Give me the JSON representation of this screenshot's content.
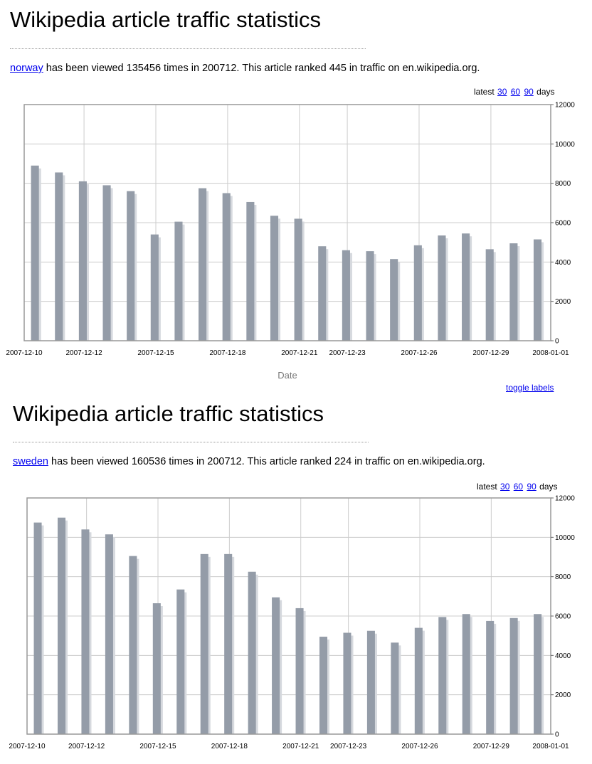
{
  "panels": [
    {
      "title": "Wikipedia article traffic statistics",
      "article": "norway",
      "summary_text": " has been viewed 135456 times in 200712. This article ranked 445 in traffic on en.wikipedia.org.",
      "latest": {
        "prefix": "latest",
        "links": [
          "30",
          "60",
          "90"
        ],
        "suffix": "days"
      },
      "toggle_label": "toggle labels",
      "chart_data": {
        "type": "bar",
        "x": [
          "2007-12-10",
          "2007-12-11",
          "2007-12-12",
          "2007-12-13",
          "2007-12-14",
          "2007-12-15",
          "2007-12-16",
          "2007-12-17",
          "2007-12-18",
          "2007-12-19",
          "2007-12-20",
          "2007-12-21",
          "2007-12-22",
          "2007-12-23",
          "2007-12-24",
          "2007-12-25",
          "2007-12-26",
          "2007-12-27",
          "2007-12-28",
          "2007-12-29",
          "2007-12-30",
          "2007-12-31"
        ],
        "values": [
          8900,
          8550,
          8100,
          7900,
          7600,
          5400,
          6050,
          7750,
          7500,
          7050,
          6350,
          6200,
          4800,
          4600,
          4550,
          4150,
          4850,
          5350,
          5450,
          4650,
          4950,
          5150
        ],
        "tick_labels": [
          "2007-12-10",
          "2007-12-12",
          "2007-12-15",
          "2007-12-18",
          "2007-12-21",
          "2007-12-23",
          "2007-12-26",
          "2007-12-29",
          "2008-01-01"
        ],
        "ylim": [
          0,
          12000
        ],
        "yticks": [
          0,
          2000,
          4000,
          6000,
          8000,
          10000,
          12000
        ],
        "xlabel": "Date",
        "ylabel": "",
        "grid": true,
        "bar_color": "#949ca8"
      }
    },
    {
      "title": "Wikipedia article traffic statistics",
      "article": "sweden",
      "summary_text": " has been viewed 160536 times in 200712. This article ranked 224 in traffic on en.wikipedia.org.",
      "latest": {
        "prefix": "latest",
        "links": [
          "30",
          "60",
          "90"
        ],
        "suffix": "days"
      },
      "chart_data": {
        "type": "bar",
        "x": [
          "2007-12-10",
          "2007-12-11",
          "2007-12-12",
          "2007-12-13",
          "2007-12-14",
          "2007-12-15",
          "2007-12-16",
          "2007-12-17",
          "2007-12-18",
          "2007-12-19",
          "2007-12-20",
          "2007-12-21",
          "2007-12-22",
          "2007-12-23",
          "2007-12-24",
          "2007-12-25",
          "2007-12-26",
          "2007-12-27",
          "2007-12-28",
          "2007-12-29",
          "2007-12-30",
          "2007-12-31"
        ],
        "values": [
          10750,
          11000,
          10400,
          10150,
          9050,
          6650,
          7350,
          9150,
          9150,
          8250,
          6950,
          6400,
          4950,
          5150,
          5250,
          4650,
          5400,
          5950,
          6100,
          5750,
          5900,
          6100
        ],
        "tick_labels": [
          "2007-12-10",
          "2007-12-12",
          "2007-12-15",
          "2007-12-18",
          "2007-12-21",
          "2007-12-23",
          "2007-12-26",
          "2007-12-29",
          "2008-01-01"
        ],
        "ylim": [
          0,
          12000
        ],
        "yticks": [
          0,
          2000,
          4000,
          6000,
          8000,
          10000,
          12000
        ],
        "xlabel": "",
        "ylabel": "",
        "grid": true,
        "bar_color": "#949ca8"
      }
    }
  ]
}
